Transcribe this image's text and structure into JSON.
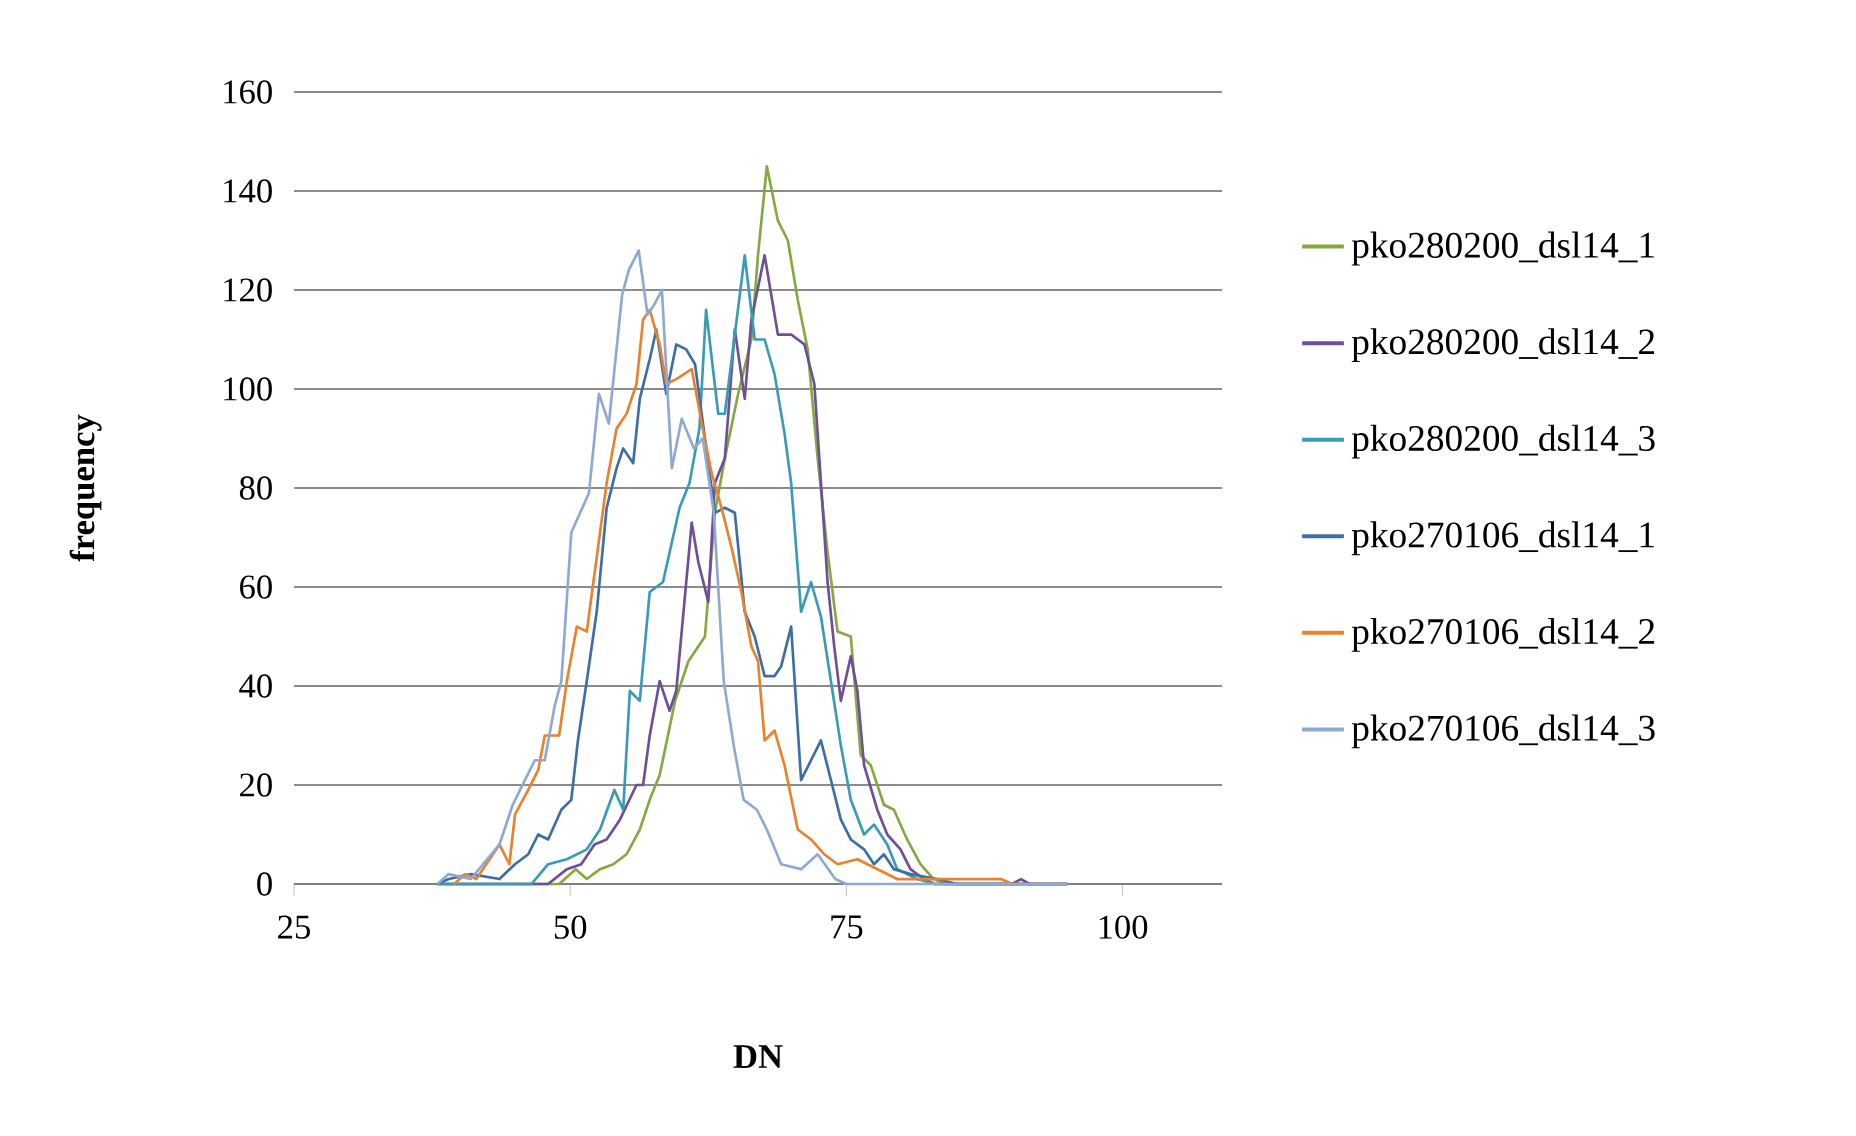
{
  "chart_data": {
    "type": "line",
    "xlabel": "DN",
    "ylabel": "frequency",
    "xlim": [
      25,
      109
    ],
    "ylim": [
      0,
      160
    ],
    "xticks": [
      25,
      50,
      75,
      100
    ],
    "yticks": [
      0,
      20,
      40,
      60,
      80,
      100,
      120,
      140,
      160
    ],
    "grid": "y",
    "legend": "right",
    "marker": "none",
    "line_style": "solid",
    "series": [
      {
        "name": "pko280200_dsl14_1",
        "color": "#86a93f",
        "x": [
          38,
          49,
          50.5,
          51.5,
          52.7,
          53.9,
          55.1,
          56.3,
          57.2,
          58.1,
          59.5,
          60.7,
          62.2,
          63.1,
          64,
          65.2,
          66.4,
          67,
          67.8,
          68.8,
          69.7,
          70.6,
          71.5,
          72.4,
          73.3,
          74.2,
          75.4,
          76.3,
          77.2,
          78.4,
          79.3,
          80.5,
          81.7,
          82.9,
          84,
          95
        ],
        "values": [
          0,
          0,
          3,
          1,
          3,
          4,
          6,
          11,
          17,
          22,
          37,
          45,
          50,
          75,
          86,
          99,
          110,
          127,
          145,
          134,
          130,
          118,
          108,
          86,
          67,
          51,
          50,
          26,
          24,
          16,
          15,
          9,
          4,
          1,
          0,
          0
        ]
      },
      {
        "name": "pko280200_dsl14_2",
        "color": "#6f4f96",
        "x": [
          38,
          48,
          49.7,
          51,
          52.2,
          53.3,
          54.5,
          56,
          56.6,
          57.2,
          58.1,
          59,
          59.6,
          61,
          61.6,
          62.5,
          63.1,
          64,
          64.9,
          65.8,
          66.4,
          67.6,
          68.8,
          70,
          71.2,
          72.1,
          72.7,
          73.3,
          73.9,
          74.5,
          75.4,
          76,
          76.6,
          77.8,
          78.7,
          79.9,
          80.8,
          82,
          83,
          90,
          90.8,
          91.6,
          95
        ],
        "values": [
          0,
          0,
          3,
          4,
          8,
          9,
          13,
          20,
          20,
          30,
          41,
          35,
          39,
          73,
          65,
          57,
          81,
          86,
          112,
          98,
          114,
          127,
          111,
          111,
          109,
          101,
          81,
          61,
          48,
          37,
          46,
          39,
          24,
          15,
          10,
          7,
          3,
          1,
          0,
          0,
          1,
          0,
          0
        ]
      },
      {
        "name": "pko280200_dsl14_3",
        "color": "#3a9bb5",
        "x": [
          38,
          46.5,
          48,
          49.7,
          51.5,
          52.7,
          54,
          54.8,
          55.4,
          56.3,
          57.2,
          58.4,
          59.9,
          60.8,
          61.7,
          62.3,
          63.4,
          64,
          64.9,
          65.8,
          66.7,
          67.6,
          68.5,
          69.4,
          70,
          70.9,
          71.8,
          72.7,
          73.6,
          74.5,
          75.4,
          76.6,
          77.5,
          78.7,
          79.6,
          81.4,
          83,
          95
        ],
        "values": [
          0,
          0,
          4,
          5,
          7,
          11,
          19,
          15,
          39,
          37,
          59,
          61,
          76,
          81,
          92,
          116,
          95,
          95,
          111,
          127,
          110,
          110,
          103,
          91,
          81,
          55,
          61,
          54,
          41,
          28,
          17,
          10,
          12,
          8,
          3,
          1,
          0,
          0
        ]
      },
      {
        "name": "pko270106_dsl14_1",
        "color": "#3d6ea8",
        "x": [
          38,
          39,
          41,
          43.6,
          45,
          46.2,
          47.1,
          48,
          49.2,
          50.1,
          50.7,
          51.5,
          52.4,
          53.3,
          54.2,
          54.8,
          55.7,
          56.3,
          57.2,
          57.8,
          58.7,
          59.6,
          60.5,
          61.3,
          62.2,
          63.1,
          64,
          64.9,
          65.8,
          66.7,
          67.6,
          68.5,
          69.1,
          70,
          70.9,
          71.8,
          72.7,
          73.6,
          74.5,
          75.4,
          76.6,
          77.5,
          78.4,
          79.3,
          80.8,
          83.2,
          85,
          95
        ],
        "values": [
          0,
          1,
          2,
          1,
          4,
          6,
          10,
          9,
          15,
          17,
          29,
          41,
          55,
          76,
          84,
          88,
          85,
          98,
          106,
          112,
          99,
          109,
          108,
          105,
          90,
          75,
          76,
          75,
          55,
          50,
          42,
          42,
          44,
          52,
          21,
          25,
          29,
          21,
          13,
          9,
          7,
          4,
          6,
          3,
          2,
          1,
          0,
          0
        ]
      },
      {
        "name": "pko270106_dsl14_2",
        "color": "#e8822e",
        "x": [
          39.5,
          40.5,
          41.5,
          43.6,
          44.5,
          45,
          46.2,
          47.1,
          47.7,
          49,
          49.7,
          50.6,
          51.5,
          52.4,
          53.3,
          54.2,
          55.1,
          56,
          56.6,
          57.2,
          58.1,
          58.7,
          59.6,
          61,
          62,
          62.8,
          63.7,
          64.6,
          65.5,
          66.4,
          67,
          67.6,
          68.5,
          69.4,
          70.6,
          71.8,
          73,
          74.2,
          76,
          77.8,
          79.6,
          89,
          90,
          95
        ],
        "values": [
          0,
          2,
          1,
          8,
          4,
          14,
          19,
          23,
          30,
          30,
          41,
          52,
          51,
          66,
          81,
          92,
          95,
          101,
          114,
          116,
          109,
          101,
          102,
          104,
          92,
          83,
          76,
          68,
          59,
          48,
          45,
          29,
          31,
          24,
          11,
          9,
          6,
          4,
          5,
          3,
          1,
          1,
          0,
          0
        ]
      },
      {
        "name": "pko270106_dsl14_3",
        "color": "#8fa9d3",
        "x": [
          38,
          39,
          41,
          43.6,
          44.8,
          45.9,
          46.8,
          47.7,
          48.6,
          49.2,
          50.1,
          51.7,
          52.6,
          53.5,
          54.7,
          55.3,
          56.2,
          57,
          57.6,
          58.3,
          59.2,
          60.1,
          61.2,
          62,
          63,
          63.9,
          64.8,
          65.7,
          66.9,
          67.8,
          69.1,
          70.9,
          72.4,
          74,
          75,
          95
        ],
        "values": [
          0,
          2,
          1,
          8,
          16,
          21,
          25,
          25,
          36,
          41,
          71,
          79,
          99,
          93,
          119,
          124,
          128,
          115,
          117,
          120,
          84,
          94,
          88,
          90,
          75,
          41,
          28,
          17,
          15,
          11,
          4,
          3,
          6,
          1,
          0,
          0
        ]
      }
    ]
  }
}
